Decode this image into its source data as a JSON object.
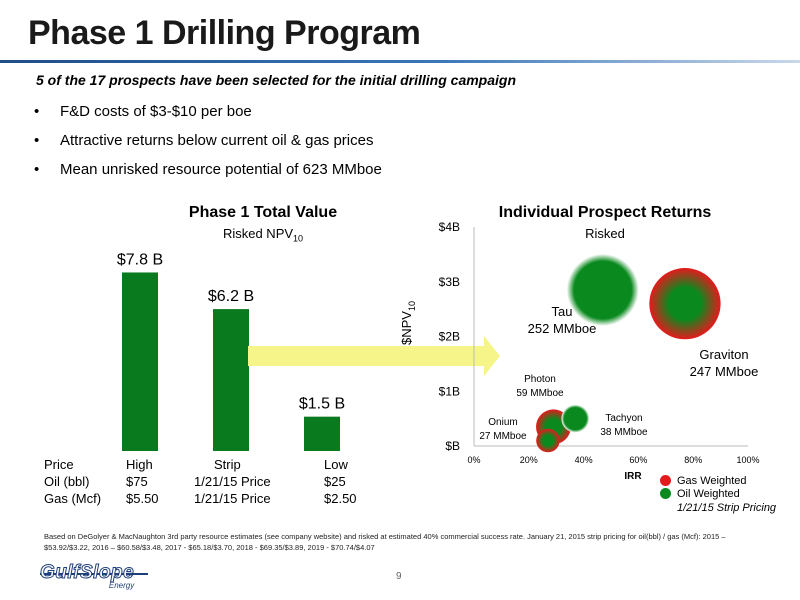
{
  "title": "Phase 1 Drilling Program",
  "subtitle": "5 of the 17 prospects have been selected for the initial drilling campaign",
  "bullets": [
    "F&D costs of $3-$10 per boe",
    "Attractive returns below current oil & gas prices",
    "Mean unrisked resource potential of 623 MMboe"
  ],
  "bullet_symbol": "•",
  "chart_data": [
    {
      "type": "bar",
      "title": "Phase 1 Total Value",
      "subtitle": "Risked NPV",
      "subtitle_subscript": "10",
      "categories": [
        "High",
        "Strip",
        "Low"
      ],
      "values": [
        7.8,
        6.2,
        1.5
      ],
      "value_labels": [
        "$7.8 B",
        "$6.2 B",
        "$1.5 B"
      ],
      "color": "#0a7a1e",
      "ylim": [
        0,
        9
      ]
    },
    {
      "type": "scatter",
      "title": "Individual Prospect Returns",
      "subtitle": "Risked",
      "xlabel": "IRR",
      "ylabel": "$NPV",
      "ylabel_subscript": "10",
      "xlim": [
        0,
        100
      ],
      "ylim": [
        0,
        4
      ],
      "x_ticks": [
        "0%",
        "20%",
        "40%",
        "60%",
        "80%",
        "100%"
      ],
      "y_ticks": [
        "$B",
        "$1B",
        "$2B",
        "$3B",
        "$4B"
      ],
      "series": [
        {
          "name": "Gas Weighted",
          "color": "#e41a1c"
        },
        {
          "name": "Oil Weighted",
          "color": "#0a8a1e"
        }
      ],
      "points": [
        {
          "name": "Tau",
          "label": "252 MMboe",
          "x": 47,
          "y": 2.85,
          "size": 252,
          "series": 1
        },
        {
          "name": "Graviton",
          "label": "247 MMboe",
          "x": 77,
          "y": 2.6,
          "size": 247,
          "series": 0
        },
        {
          "name": "Photon",
          "label": "59 MMboe",
          "x": 29,
          "y": 0.35,
          "size": 59,
          "series": 0
        },
        {
          "name": "Tachyon",
          "label": "38 MMboe",
          "x": 37,
          "y": 0.5,
          "size": 38,
          "series": 1
        },
        {
          "name": "Onium",
          "label": "27 MMboe",
          "x": 27,
          "y": 0.1,
          "size": 27,
          "series": 0
        }
      ]
    }
  ],
  "price_table": {
    "headers": [
      "Price",
      "High",
      "Strip",
      "Low"
    ],
    "rows": [
      [
        "Oil (bbl)",
        "$75",
        "1/21/15 Price",
        "$25"
      ],
      [
        "Gas (Mcf)",
        "$5.50",
        "1/21/15 Price",
        "$2.50"
      ]
    ]
  },
  "legend": {
    "gas": "Gas Weighted",
    "oil": "Oil Weighted",
    "note": "1/21/15 Strip Pricing"
  },
  "footnote": "Based on DeGolyer & MacNaughton 3rd party resource estimates (see company website) and risked at estimated 40% commercial success rate.  January 21, 2015 strip pricing for oil(bbl) / gas (Mcf): 2015 – $53.92/$3.22, 2016 – $60.58/$3.48, 2017 - $65.18/$3.70, 2018 - $69.35/$3.89, 2019 - $70.74/$4.07",
  "logo": {
    "main": "GulfSlope",
    "sub": "Energy"
  },
  "page_number": "9",
  "colors": {
    "accent_blue": "#1f4e89",
    "bar_green": "#0a7a1e",
    "arrow_yellow": "#f5f58a"
  }
}
